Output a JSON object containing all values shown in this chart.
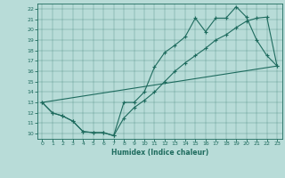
{
  "xlabel": "Humidex (Indice chaleur)",
  "xlim": [
    -0.5,
    23.5
  ],
  "ylim": [
    9.5,
    22.5
  ],
  "xticks": [
    0,
    1,
    2,
    3,
    4,
    5,
    6,
    7,
    8,
    9,
    10,
    11,
    12,
    13,
    14,
    15,
    16,
    17,
    18,
    19,
    20,
    21,
    22,
    23
  ],
  "yticks": [
    10,
    11,
    12,
    13,
    14,
    15,
    16,
    17,
    18,
    19,
    20,
    21,
    22
  ],
  "bg_color": "#b8dcd8",
  "line_color": "#1e6b5e",
  "line1_x": [
    0,
    1,
    2,
    3,
    4,
    5,
    6,
    7,
    8,
    9,
    10,
    11,
    12,
    13,
    14,
    15,
    16,
    17,
    18,
    19,
    20,
    21,
    22,
    23
  ],
  "line1_y": [
    13,
    12,
    11.7,
    11.2,
    10.2,
    10.1,
    10.1,
    9.8,
    13.0,
    13.0,
    14.0,
    16.4,
    17.8,
    18.5,
    19.3,
    21.1,
    19.8,
    21.1,
    21.1,
    22.2,
    21.2,
    19.0,
    17.5,
    16.5
  ],
  "line2_x": [
    0,
    1,
    2,
    3,
    4,
    5,
    6,
    7,
    8,
    9,
    10,
    11,
    12,
    13,
    14,
    15,
    16,
    17,
    18,
    19,
    20,
    21,
    22,
    23
  ],
  "line2_y": [
    13,
    12,
    11.7,
    11.2,
    10.2,
    10.1,
    10.1,
    9.8,
    11.5,
    12.5,
    13.2,
    14.0,
    15.0,
    16.0,
    16.8,
    17.5,
    18.2,
    19.0,
    19.5,
    20.2,
    20.8,
    21.1,
    21.2,
    16.5
  ],
  "line3_x": [
    0,
    23
  ],
  "line3_y": [
    13,
    16.5
  ]
}
